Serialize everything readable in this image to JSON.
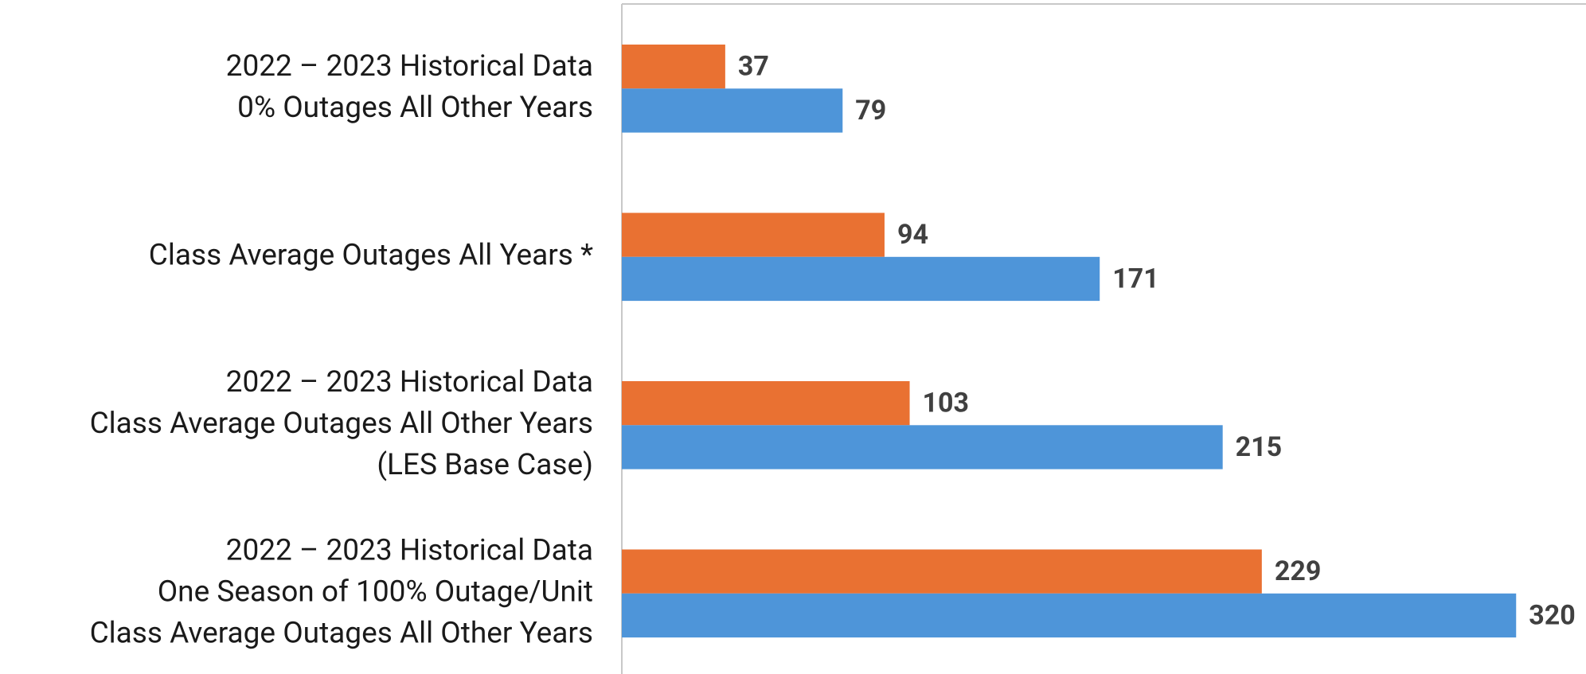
{
  "chart_data": {
    "type": "bar",
    "orientation": "horizontal",
    "categories": [
      [
        "2022 – 2023 Historical Data",
        "0% Outages All Other Years"
      ],
      [
        "Class Average Outages All Years *"
      ],
      [
        "2022 – 2023 Historical Data",
        "Class Average Outages All Other Years",
        "(LES Base Case)"
      ],
      [
        "2022 – 2023 Historical Data",
        "One Season of 100% Outage/Unit",
        "Class Average Outages All Other Years"
      ]
    ],
    "series": [
      {
        "color": "#e97132",
        "values": [
          37,
          94,
          103,
          229
        ]
      },
      {
        "color": "#4e95d9",
        "values": [
          79,
          171,
          215,
          320
        ]
      }
    ],
    "xlim": [
      0,
      345
    ]
  }
}
